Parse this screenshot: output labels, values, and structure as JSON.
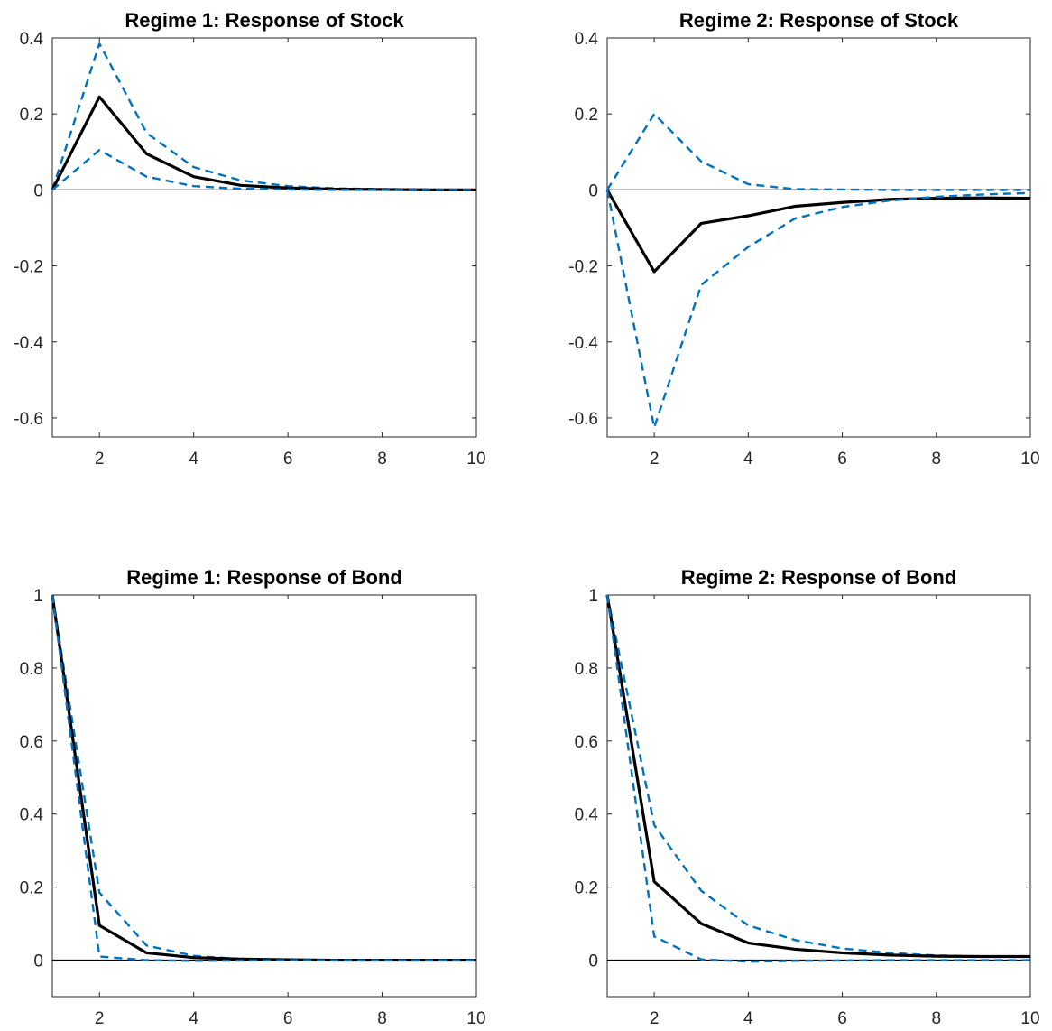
{
  "chart_data": [
    {
      "type": "line",
      "title": "Regime 1: Response of Stock",
      "xlim": [
        1,
        10
      ],
      "ylim": [
        -0.65,
        0.4
      ],
      "xticks": [
        2,
        4,
        6,
        8,
        10
      ],
      "yticks": [
        -0.6,
        -0.4,
        -0.2,
        0,
        0.2,
        0.4
      ],
      "x": [
        1,
        2,
        3,
        4,
        5,
        6,
        7,
        8,
        9,
        10
      ],
      "series": [
        {
          "role": "upper",
          "style": "dashed",
          "color": "#0072BD",
          "values": [
            0,
            0.385,
            0.15,
            0.06,
            0.025,
            0.01,
            0.004,
            0.002,
            0.001,
            0
          ]
        },
        {
          "role": "median",
          "style": "solid",
          "color": "#000000",
          "values": [
            0,
            0.245,
            0.095,
            0.035,
            0.012,
            0.005,
            0.002,
            0.001,
            0,
            0
          ]
        },
        {
          "role": "lower",
          "style": "dashed",
          "color": "#0072BD",
          "values": [
            0,
            0.105,
            0.035,
            0.01,
            0.003,
            0.001,
            0,
            0,
            0,
            0
          ]
        }
      ]
    },
    {
      "type": "line",
      "title": "Regime 2: Response of Stock",
      "xlim": [
        1,
        10
      ],
      "ylim": [
        -0.65,
        0.4
      ],
      "xticks": [
        2,
        4,
        6,
        8,
        10
      ],
      "yticks": [
        -0.6,
        -0.4,
        -0.2,
        0,
        0.2,
        0.4
      ],
      "x": [
        1,
        2,
        3,
        4,
        5,
        6,
        7,
        8,
        9,
        10
      ],
      "series": [
        {
          "role": "upper",
          "style": "dashed",
          "color": "#0072BD",
          "values": [
            0,
            0.2,
            0.075,
            0.015,
            0.002,
            0.001,
            0,
            0,
            0,
            0
          ]
        },
        {
          "role": "median",
          "style": "solid",
          "color": "#000000",
          "values": [
            0,
            -0.215,
            -0.088,
            -0.068,
            -0.043,
            -0.033,
            -0.025,
            -0.022,
            -0.021,
            -0.022
          ]
        },
        {
          "role": "lower",
          "style": "dashed",
          "color": "#0072BD",
          "values": [
            0,
            -0.625,
            -0.25,
            -0.15,
            -0.075,
            -0.045,
            -0.028,
            -0.018,
            -0.012,
            -0.008
          ]
        }
      ]
    },
    {
      "type": "line",
      "title": "Regime 1: Response of Bond",
      "xlim": [
        1,
        10
      ],
      "ylim": [
        -0.1,
        1
      ],
      "xticks": [
        2,
        4,
        6,
        8,
        10
      ],
      "yticks": [
        0,
        0.2,
        0.4,
        0.6,
        0.8,
        1
      ],
      "x": [
        1,
        2,
        3,
        4,
        5,
        6,
        7,
        8,
        9,
        10
      ],
      "series": [
        {
          "role": "upper",
          "style": "dashed",
          "color": "#0072BD",
          "values": [
            1,
            0.185,
            0.04,
            0.012,
            0.003,
            0.001,
            0,
            0,
            0,
            0
          ]
        },
        {
          "role": "median",
          "style": "solid",
          "color": "#000000",
          "values": [
            1,
            0.095,
            0.02,
            0.007,
            0.003,
            0.001,
            0,
            0,
            0,
            0
          ]
        },
        {
          "role": "lower",
          "style": "dashed",
          "color": "#0072BD",
          "values": [
            1,
            0.01,
            0,
            -0.002,
            -0.001,
            0,
            0,
            0,
            0,
            0
          ]
        }
      ]
    },
    {
      "type": "line",
      "title": "Regime 2: Response of Bond",
      "xlim": [
        1,
        10
      ],
      "ylim": [
        -0.1,
        1
      ],
      "xticks": [
        2,
        4,
        6,
        8,
        10
      ],
      "yticks": [
        0,
        0.2,
        0.4,
        0.6,
        0.8,
        1
      ],
      "x": [
        1,
        2,
        3,
        4,
        5,
        6,
        7,
        8,
        9,
        10
      ],
      "series": [
        {
          "role": "upper",
          "style": "dashed",
          "color": "#0072BD",
          "values": [
            1,
            0.37,
            0.19,
            0.095,
            0.055,
            0.032,
            0.02,
            0.013,
            0.01,
            0.01
          ]
        },
        {
          "role": "median",
          "style": "solid",
          "color": "#000000",
          "values": [
            1,
            0.215,
            0.1,
            0.047,
            0.03,
            0.02,
            0.014,
            0.011,
            0.01,
            0.01
          ]
        },
        {
          "role": "lower",
          "style": "dashed",
          "color": "#0072BD",
          "values": [
            1,
            0.065,
            0.002,
            -0.004,
            -0.002,
            -0.001,
            0,
            0,
            0,
            0
          ]
        }
      ]
    }
  ]
}
